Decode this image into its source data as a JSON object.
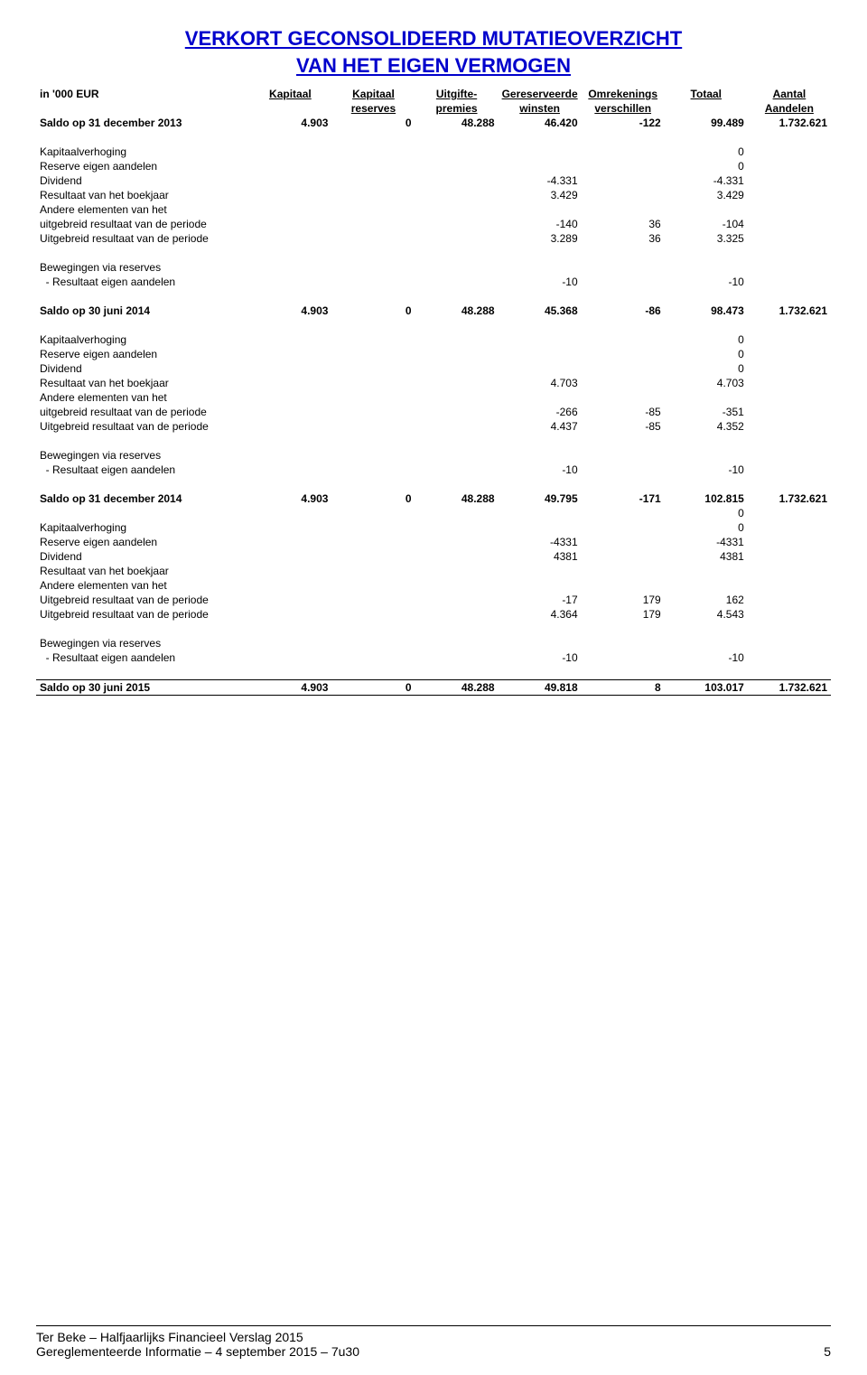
{
  "title_line1": "VERKORT GECONSOLIDEERD MUTATIEOVERZICHT",
  "title_line2": "VAN HET EIGEN VERMOGEN",
  "unit_label": "in '000 EUR",
  "headers": [
    [
      "Kapitaal",
      ""
    ],
    [
      "Kapitaal",
      "reserves"
    ],
    [
      "Uitgifte-",
      "premies"
    ],
    [
      "Gereserveerde",
      "winsten"
    ],
    [
      "Omrekenings",
      "verschillen"
    ],
    [
      "Totaal",
      ""
    ],
    [
      "Aantal",
      "Aandelen"
    ]
  ],
  "rows": [
    {
      "type": "data",
      "bold": true,
      "label": "Saldo op 31 december 2013",
      "c": [
        "4.903",
        "0",
        "48.288",
        "46.420",
        "-122",
        "99.489",
        "1.732.621"
      ]
    },
    {
      "type": "spacer"
    },
    {
      "type": "data",
      "label": "Kapitaalverhoging",
      "c": [
        "",
        "",
        "",
        "",
        "",
        "0",
        ""
      ]
    },
    {
      "type": "data",
      "label": "Reserve eigen aandelen",
      "c": [
        "",
        "",
        "",
        "",
        "",
        "0",
        ""
      ]
    },
    {
      "type": "data",
      "label": "Dividend",
      "c": [
        "",
        "",
        "",
        "-4.331",
        "",
        "-4.331",
        ""
      ]
    },
    {
      "type": "data",
      "label": "Resultaat van het boekjaar",
      "c": [
        "",
        "",
        "",
        "3.429",
        "",
        "3.429",
        ""
      ]
    },
    {
      "type": "data",
      "label": "Andere elementen van het",
      "c": [
        "",
        "",
        "",
        "",
        "",
        "",
        ""
      ]
    },
    {
      "type": "data",
      "label": "uitgebreid resultaat van de periode",
      "c": [
        "",
        "",
        "",
        "-140",
        "36",
        "-104",
        ""
      ]
    },
    {
      "type": "data",
      "label": "Uitgebreid resultaat van de periode",
      "c": [
        "",
        "",
        "",
        "3.289",
        "36",
        "3.325",
        ""
      ]
    },
    {
      "type": "spacer"
    },
    {
      "type": "data",
      "label": "Bewegingen via reserves",
      "c": [
        "",
        "",
        "",
        "",
        "",
        "",
        ""
      ]
    },
    {
      "type": "data",
      "label": "  - Resultaat eigen aandelen",
      "c": [
        "",
        "",
        "",
        "-10",
        "",
        "-10",
        ""
      ]
    },
    {
      "type": "spacer"
    },
    {
      "type": "data",
      "bold": true,
      "label": "Saldo op 30 juni 2014",
      "c": [
        "4.903",
        "0",
        "48.288",
        "45.368",
        "-86",
        "98.473",
        "1.732.621"
      ]
    },
    {
      "type": "spacer"
    },
    {
      "type": "data",
      "label": "Kapitaalverhoging",
      "c": [
        "",
        "",
        "",
        "",
        "",
        "0",
        ""
      ]
    },
    {
      "type": "data",
      "label": "Reserve eigen aandelen",
      "c": [
        "",
        "",
        "",
        "",
        "",
        "0",
        ""
      ]
    },
    {
      "type": "data",
      "label": "Dividend",
      "c": [
        "",
        "",
        "",
        "",
        "",
        "0",
        ""
      ]
    },
    {
      "type": "data",
      "label": "Resultaat van het boekjaar",
      "c": [
        "",
        "",
        "",
        "4.703",
        "",
        "4.703",
        ""
      ]
    },
    {
      "type": "data",
      "label": "Andere elementen van het",
      "c": [
        "",
        "",
        "",
        "",
        "",
        "",
        ""
      ]
    },
    {
      "type": "data",
      "label": "uitgebreid resultaat van de periode",
      "c": [
        "",
        "",
        "",
        "-266",
        "-85",
        "-351",
        ""
      ]
    },
    {
      "type": "data",
      "label": "Uitgebreid resultaat van de periode",
      "c": [
        "",
        "",
        "",
        "4.437",
        "-85",
        "4.352",
        ""
      ]
    },
    {
      "type": "spacer"
    },
    {
      "type": "data",
      "label": "Bewegingen via reserves",
      "c": [
        "",
        "",
        "",
        "",
        "",
        "",
        ""
      ]
    },
    {
      "type": "data",
      "label": "  - Resultaat eigen aandelen",
      "c": [
        "",
        "",
        "",
        "-10",
        "",
        "-10",
        ""
      ]
    },
    {
      "type": "spacer"
    },
    {
      "type": "data",
      "bold": true,
      "label": "Saldo op 31 december 2014",
      "c": [
        "4.903",
        "0",
        "48.288",
        "49.795",
        "-171",
        "102.815",
        "1.732.621"
      ]
    },
    {
      "type": "data",
      "label": "",
      "c": [
        "",
        "",
        "",
        "",
        "",
        "0",
        ""
      ]
    },
    {
      "type": "data",
      "label": "Kapitaalverhoging",
      "c": [
        "",
        "",
        "",
        "",
        "",
        "0",
        ""
      ]
    },
    {
      "type": "data",
      "label": "Reserve eigen aandelen",
      "c": [
        "",
        "",
        "",
        "-4331",
        "",
        "-4331",
        ""
      ]
    },
    {
      "type": "data",
      "label": "Dividend",
      "c": [
        "",
        "",
        "",
        "4381",
        "",
        "4381",
        ""
      ]
    },
    {
      "type": "data",
      "label": "Resultaat van het boekjaar",
      "c": [
        "",
        "",
        "",
        "",
        "",
        "",
        ""
      ]
    },
    {
      "type": "data",
      "label": "Andere elementen van het",
      "c": [
        "",
        "",
        "",
        "",
        "",
        "",
        ""
      ]
    },
    {
      "type": "data",
      "label": "Uitgebreid resultaat van de periode",
      "c": [
        "",
        "",
        "",
        "-17",
        "179",
        "162",
        ""
      ]
    },
    {
      "type": "data",
      "label": "Uitgebreid resultaat van de periode",
      "c": [
        "",
        "",
        "",
        "4.364",
        "179",
        "4.543",
        ""
      ]
    },
    {
      "type": "spacer"
    },
    {
      "type": "data",
      "label": "Bewegingen via reserves",
      "c": [
        "",
        "",
        "",
        "",
        "",
        "",
        ""
      ]
    },
    {
      "type": "data",
      "label": "  - Resultaat eigen aandelen",
      "c": [
        "",
        "",
        "",
        "-10",
        "",
        "-10",
        ""
      ]
    },
    {
      "type": "spacer"
    },
    {
      "type": "data",
      "bold": true,
      "sep": "both",
      "label": "Saldo op 30 juni 2015",
      "c": [
        "4.903",
        "0",
        "48.288",
        "49.818",
        "8",
        "103.017",
        "1.732.621"
      ]
    }
  ],
  "footer": {
    "line1": "Ter Beke – Halfjaarlijks Financieel Verslag 2015",
    "line2_left": "Gereglementeerde Informatie – 4 september 2015 – 7u30",
    "line2_right": "5"
  }
}
